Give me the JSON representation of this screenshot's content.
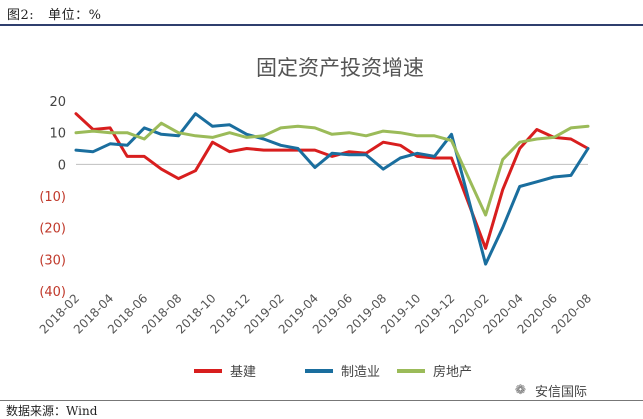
{
  "header": {
    "figure_label": "图2:",
    "unit_label": "单位：%"
  },
  "source": {
    "text": "数据来源：Wind"
  },
  "watermark": {
    "text": "安信国际"
  },
  "chart_data": {
    "type": "line",
    "title": "固定资产投资增速",
    "xlabel": "",
    "ylabel": "",
    "ylim": [
      -40,
      20
    ],
    "yticks": [
      20,
      10,
      0,
      -10,
      -20,
      -30,
      -40
    ],
    "ytick_labels": [
      "20",
      "10",
      "0",
      "(10)",
      "(20)",
      "(30)",
      "(40)"
    ],
    "x": [
      "2018-02",
      "2018-03",
      "2018-04",
      "2018-05",
      "2018-06",
      "2018-07",
      "2018-08",
      "2018-09",
      "2018-10",
      "2018-11",
      "2018-12",
      "2019-01",
      "2019-02",
      "2019-03",
      "2019-04",
      "2019-05",
      "2019-06",
      "2019-07",
      "2019-08",
      "2019-09",
      "2019-10",
      "2019-11",
      "2019-12",
      "2020-01",
      "2020-02",
      "2020-03",
      "2020-04",
      "2020-05",
      "2020-06",
      "2020-07",
      "2020-08"
    ],
    "xtick_labels": [
      "2018-02",
      "2018-04",
      "2018-06",
      "2018-08",
      "2018-10",
      "2018-12",
      "2019-02",
      "2019-04",
      "2019-06",
      "2019-08",
      "2019-10",
      "2019-12",
      "2020-02",
      "2020-04",
      "2020-06",
      "2020-08"
    ],
    "series": [
      {
        "name": "基建",
        "color": "#d81e1e",
        "values": [
          16,
          11,
          11.5,
          2.5,
          2.5,
          -1.5,
          -4.5,
          -2,
          7,
          4,
          5,
          4.5,
          4.5,
          4.5,
          4.5,
          2.5,
          4,
          3.5,
          7,
          6,
          2.5,
          2,
          2,
          null,
          -26.5,
          -8,
          5,
          11,
          8.5,
          8,
          5
        ]
      },
      {
        "name": "制造业",
        "color": "#1a6e9e",
        "values": [
          4.5,
          4,
          6.5,
          6,
          11.5,
          9.5,
          9,
          16,
          12,
          12.5,
          9.5,
          8,
          6,
          5,
          -1,
          3.5,
          3,
          3,
          -1.5,
          2,
          3.5,
          2.5,
          9.5,
          null,
          -31.5,
          -20,
          -7,
          -5.5,
          -4,
          -3.5,
          5
        ]
      },
      {
        "name": "房地产",
        "color": "#9bbb59",
        "values": [
          10,
          10.5,
          10,
          10,
          8,
          13,
          10,
          9,
          8.5,
          10,
          8.5,
          9,
          11.5,
          12,
          11.5,
          9.5,
          10,
          9,
          10.5,
          10,
          9,
          9,
          7.5,
          null,
          -16,
          1.5,
          7,
          8,
          8.5,
          11.5,
          12
        ]
      }
    ],
    "legend_position": "bottom"
  }
}
